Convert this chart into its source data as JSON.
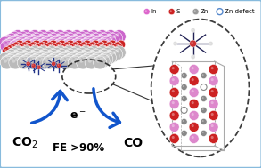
{
  "bg_color": "#ffffff",
  "border_color": "#88bbdd",
  "text_co2": "CO$_2$",
  "text_fe": "FE >90%",
  "text_co": "CO",
  "text_e": "e$^-$",
  "legend_items": [
    {
      "label": "In",
      "color": "#dd66cc",
      "filled": true
    },
    {
      "label": "S",
      "color": "#cc2222",
      "filled": true
    },
    {
      "label": "Zn",
      "color": "#999999",
      "filled": true
    },
    {
      "label": "Zn defect",
      "color": "#5588cc",
      "filled": false
    }
  ],
  "arrow_color": "#1155cc",
  "gray_color": "#bbbbbb",
  "red_color": "#cc2222",
  "purple_color": "#cc66cc",
  "crystal_red": "#cc2222",
  "crystal_pink": "#dd88cc",
  "crystal_gray": "#888888",
  "crystal_line": "#aaaaaa"
}
